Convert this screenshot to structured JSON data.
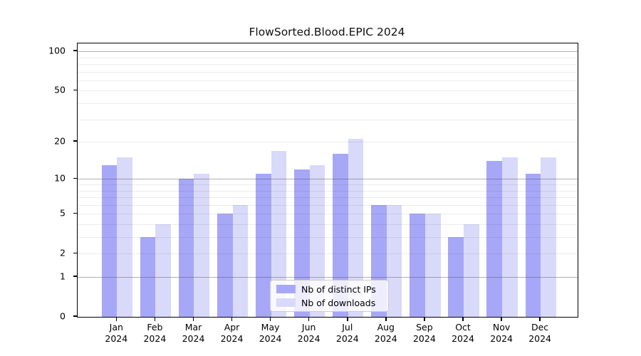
{
  "title": "FlowSorted.Blood.EPIC 2024",
  "colors": {
    "bar_distinct_ips": "#a7a7f8",
    "bar_downloads": "#d9d9fa",
    "axis": "#000000",
    "grid_major": "#b4b4b4",
    "grid_minor": "#ebebeb",
    "background": "#ffffff"
  },
  "legend": {
    "items": [
      {
        "label": "Nb of distinct IPs",
        "color": "#a7a7f8"
      },
      {
        "label": "Nb of downloads",
        "color": "#d9d9fa"
      }
    ],
    "position": "lower center"
  },
  "chart_data": {
    "type": "bar",
    "title": "FlowSorted.Blood.EPIC 2024",
    "categories": [
      "Jan",
      "Feb",
      "Mar",
      "Apr",
      "May",
      "Jun",
      "Jul",
      "Aug",
      "Sep",
      "Oct",
      "Nov",
      "Dec"
    ],
    "category_year": "2024",
    "series": [
      {
        "name": "Nb of distinct IPs",
        "color": "#a7a7f8",
        "values": [
          13,
          3,
          10,
          5,
          11,
          12,
          16,
          6,
          5,
          3,
          14,
          11
        ]
      },
      {
        "name": "Nb of downloads",
        "color": "#d9d9fa",
        "values": [
          15,
          4,
          11,
          6,
          17,
          13,
          21,
          6,
          5,
          4,
          15,
          15
        ]
      }
    ],
    "xlabel": "",
    "ylabel": "",
    "y_scale": "log10(1+value)",
    "y_ticks": [
      0,
      1,
      2,
      5,
      10,
      20,
      50,
      100
    ],
    "y_grid_major_at": [
      1,
      10,
      100
    ],
    "y_grid_minor_at": [
      2,
      3,
      4,
      5,
      6,
      7,
      8,
      9,
      20,
      30,
      40,
      50,
      60,
      70,
      80,
      90
    ],
    "ylim": [
      0,
      115
    ],
    "grid": true,
    "legend_position": "lower center"
  }
}
